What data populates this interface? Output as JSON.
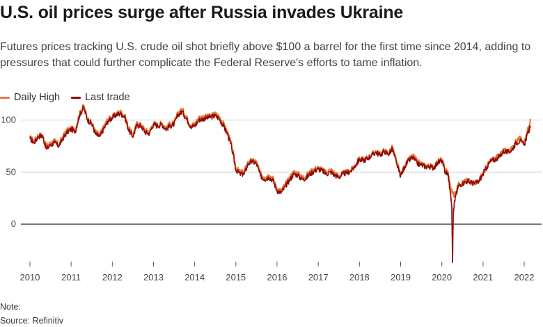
{
  "header": {
    "title": "U.S. oil prices surge after Russia invades Ukraine",
    "subtitle": "Futures prices tracking U.S. crude oil shot briefly above $100 a barrel for the first time since 2014, adding to pressures that could further complicate the Federal Reserve's efforts to tame inflation."
  },
  "footer": {
    "note": "Note:",
    "source": "Source: Refinitiv"
  },
  "chart_data": {
    "type": "line",
    "title": "U.S. oil prices surge after Russia invades Ukraine",
    "xlabel": "",
    "ylabel": "",
    "xlim": [
      2009.95,
      2022.35
    ],
    "ylim": [
      -40,
      115
    ],
    "x_ticks": [
      2010,
      2011,
      2012,
      2013,
      2014,
      2015,
      2016,
      2017,
      2018,
      2019,
      2020,
      2021,
      2022
    ],
    "y_ticks": [
      0,
      50,
      100
    ],
    "grid": "horizontal",
    "legend": "top-left",
    "series": [
      {
        "name": "Daily High",
        "color": "#e8793a",
        "x": [
          2010.0,
          2010.1,
          2010.2,
          2010.3,
          2010.4,
          2010.5,
          2010.6,
          2010.7,
          2010.8,
          2010.9,
          2011.0,
          2011.1,
          2011.2,
          2011.3,
          2011.4,
          2011.5,
          2011.6,
          2011.7,
          2011.8,
          2011.9,
          2012.0,
          2012.1,
          2012.2,
          2012.3,
          2012.4,
          2012.5,
          2012.6,
          2012.7,
          2012.8,
          2012.9,
          2013.0,
          2013.1,
          2013.2,
          2013.3,
          2013.4,
          2013.5,
          2013.6,
          2013.7,
          2013.8,
          2013.9,
          2014.0,
          2014.1,
          2014.2,
          2014.3,
          2014.4,
          2014.5,
          2014.6,
          2014.7,
          2014.8,
          2014.9,
          2015.0,
          2015.1,
          2015.2,
          2015.3,
          2015.4,
          2015.5,
          2015.6,
          2015.7,
          2015.8,
          2015.9,
          2016.0,
          2016.1,
          2016.2,
          2016.3,
          2016.4,
          2016.5,
          2016.6,
          2016.7,
          2016.8,
          2016.9,
          2017.0,
          2017.1,
          2017.2,
          2017.3,
          2017.4,
          2017.5,
          2017.6,
          2017.7,
          2017.8,
          2017.9,
          2018.0,
          2018.1,
          2018.2,
          2018.3,
          2018.4,
          2018.5,
          2018.6,
          2018.7,
          2018.8,
          2018.9,
          2019.0,
          2019.1,
          2019.2,
          2019.3,
          2019.4,
          2019.5,
          2019.6,
          2019.7,
          2019.8,
          2019.9,
          2020.0,
          2020.08,
          2020.15,
          2020.22,
          2020.3,
          2020.35,
          2020.4,
          2020.5,
          2020.6,
          2020.7,
          2020.8,
          2020.9,
          2021.0,
          2021.1,
          2021.2,
          2021.3,
          2021.4,
          2021.5,
          2021.6,
          2021.7,
          2021.8,
          2021.9,
          2022.0,
          2022.1,
          2022.15
        ],
        "values": [
          83,
          80,
          85,
          86,
          74,
          78,
          80,
          76,
          84,
          90,
          92,
          90,
          105,
          114,
          101,
          97,
          88,
          86,
          94,
          101,
          103,
          106,
          108,
          104,
          92,
          86,
          97,
          95,
          90,
          89,
          97,
          95,
          97,
          93,
          96,
          97,
          107,
          110,
          103,
          95,
          96,
          102,
          103,
          103,
          104,
          106,
          103,
          96,
          88,
          75,
          54,
          50,
          50,
          60,
          61,
          60,
          48,
          45,
          47,
          44,
          34,
          32,
          38,
          44,
          50,
          49,
          45,
          46,
          50,
          53,
          54,
          52,
          50,
          52,
          49,
          46,
          49,
          50,
          52,
          57,
          63,
          62,
          64,
          67,
          70,
          67,
          71,
          68,
          74,
          60,
          47,
          56,
          62,
          66,
          60,
          58,
          56,
          56,
          55,
          60,
          62,
          52,
          50,
          33,
          28,
          30,
          38,
          40,
          42,
          41,
          40,
          42,
          49,
          56,
          62,
          63,
          66,
          71,
          70,
          72,
          80,
          82,
          79,
          92,
          101
        ]
      },
      {
        "name": "Last trade",
        "color": "#8f0c0c",
        "x": [
          2010.0,
          2010.1,
          2010.2,
          2010.3,
          2010.4,
          2010.5,
          2010.6,
          2010.7,
          2010.8,
          2010.9,
          2011.0,
          2011.1,
          2011.2,
          2011.3,
          2011.4,
          2011.5,
          2011.6,
          2011.7,
          2011.8,
          2011.9,
          2012.0,
          2012.1,
          2012.2,
          2012.3,
          2012.4,
          2012.5,
          2012.6,
          2012.7,
          2012.8,
          2012.9,
          2013.0,
          2013.1,
          2013.2,
          2013.3,
          2013.4,
          2013.5,
          2013.6,
          2013.7,
          2013.8,
          2013.9,
          2014.0,
          2014.1,
          2014.2,
          2014.3,
          2014.4,
          2014.5,
          2014.6,
          2014.7,
          2014.8,
          2014.9,
          2015.0,
          2015.1,
          2015.2,
          2015.3,
          2015.4,
          2015.5,
          2015.6,
          2015.7,
          2015.8,
          2015.9,
          2016.0,
          2016.1,
          2016.2,
          2016.3,
          2016.4,
          2016.5,
          2016.6,
          2016.7,
          2016.8,
          2016.9,
          2017.0,
          2017.1,
          2017.2,
          2017.3,
          2017.4,
          2017.5,
          2017.6,
          2017.7,
          2017.8,
          2017.9,
          2018.0,
          2018.1,
          2018.2,
          2018.3,
          2018.4,
          2018.5,
          2018.6,
          2018.7,
          2018.8,
          2018.9,
          2019.0,
          2019.1,
          2019.2,
          2019.3,
          2019.4,
          2019.5,
          2019.6,
          2019.7,
          2019.8,
          2019.9,
          2020.0,
          2020.08,
          2020.15,
          2020.22,
          2020.24,
          2020.26,
          2020.28,
          2020.3,
          2020.35,
          2020.4,
          2020.5,
          2020.6,
          2020.7,
          2020.8,
          2020.9,
          2021.0,
          2021.1,
          2021.2,
          2021.3,
          2021.4,
          2021.5,
          2021.6,
          2021.7,
          2021.8,
          2021.9,
          2022.0,
          2022.1,
          2022.15
        ],
        "values": [
          82,
          78,
          84,
          85,
          72,
          76,
          78,
          75,
          82,
          88,
          91,
          89,
          104,
          112,
          100,
          96,
          86,
          84,
          92,
          99,
          102,
          105,
          106,
          103,
          90,
          84,
          95,
          94,
          88,
          87,
          96,
          94,
          96,
          91,
          94,
          96,
          105,
          108,
          101,
          94,
          94,
          100,
          101,
          102,
          103,
          104,
          101,
          94,
          86,
          73,
          52,
          48,
          48,
          58,
          60,
          58,
          46,
          43,
          45,
          42,
          32,
          30,
          36,
          42,
          48,
          47,
          43,
          44,
          48,
          51,
          53,
          51,
          48,
          50,
          47,
          45,
          48,
          49,
          51,
          56,
          62,
          61,
          63,
          66,
          69,
          66,
          70,
          67,
          72,
          58,
          46,
          55,
          61,
          64,
          58,
          57,
          55,
          55,
          54,
          59,
          61,
          50,
          48,
          25,
          18,
          -37,
          12,
          20,
          29,
          37,
          39,
          41,
          40,
          39,
          41,
          48,
          55,
          61,
          62,
          65,
          70,
          69,
          71,
          78,
          80,
          76,
          89,
          93
        ]
      }
    ]
  }
}
